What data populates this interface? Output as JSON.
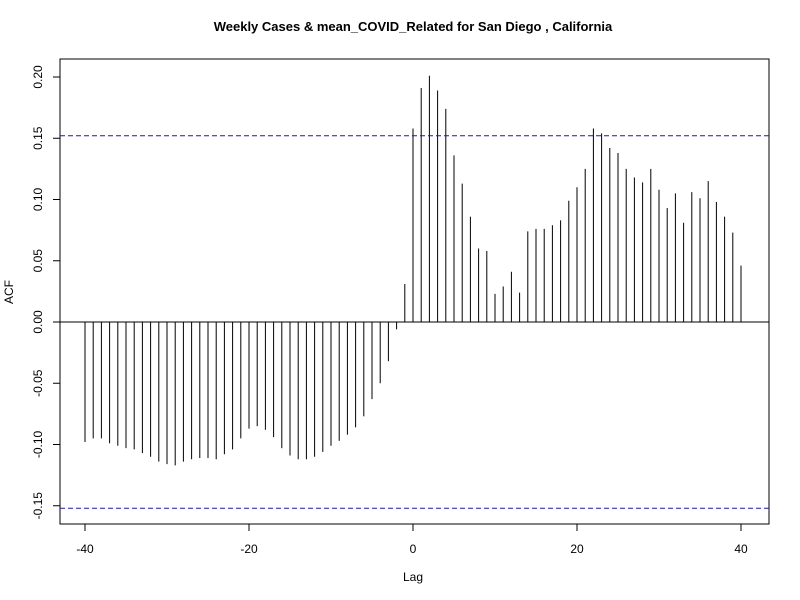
{
  "chart_data": {
    "type": "bar",
    "title": "Weekly Cases & mean_COVID_Related for San Diego , California",
    "xlabel": "Lag",
    "ylabel": "ACF",
    "xlim": [
      -40,
      40
    ],
    "ylim": [
      -0.15,
      0.2
    ],
    "x_ticks": [
      "-40",
      "-20",
      "0",
      "20",
      "40"
    ],
    "y_ticks": [
      "-0.15",
      "-0.10",
      "-0.05",
      "0.00",
      "0.05",
      "0.10",
      "0.15",
      "0.20"
    ],
    "confidence_bound": 0.152,
    "grid": false,
    "legend": "none",
    "x": [
      -40,
      -39,
      -38,
      -37,
      -36,
      -35,
      -34,
      -33,
      -32,
      -31,
      -30,
      -29,
      -28,
      -27,
      -26,
      -25,
      -24,
      -23,
      -22,
      -21,
      -20,
      -19,
      -18,
      -17,
      -16,
      -15,
      -14,
      -13,
      -12,
      -11,
      -10,
      -9,
      -8,
      -7,
      -6,
      -5,
      -4,
      -3,
      -2,
      -1,
      0,
      1,
      2,
      3,
      4,
      5,
      6,
      7,
      8,
      9,
      10,
      11,
      12,
      13,
      14,
      15,
      16,
      17,
      18,
      19,
      20,
      21,
      22,
      23,
      24,
      25,
      26,
      27,
      28,
      29,
      30,
      31,
      32,
      33,
      34,
      35,
      36,
      37,
      38,
      39,
      40
    ],
    "values": [
      -0.098,
      -0.095,
      -0.095,
      -0.099,
      -0.101,
      -0.103,
      -0.104,
      -0.107,
      -0.11,
      -0.114,
      -0.116,
      -0.117,
      -0.114,
      -0.112,
      -0.111,
      -0.111,
      -0.112,
      -0.108,
      -0.104,
      -0.095,
      -0.087,
      -0.085,
      -0.088,
      -0.094,
      -0.103,
      -0.109,
      -0.112,
      -0.112,
      -0.11,
      -0.106,
      -0.101,
      -0.097,
      -0.092,
      -0.086,
      -0.077,
      -0.063,
      -0.05,
      -0.032,
      -0.006,
      0.031,
      0.158,
      0.191,
      0.201,
      0.189,
      0.174,
      0.136,
      0.113,
      0.086,
      0.06,
      0.058,
      0.023,
      0.029,
      0.041,
      0.024,
      0.074,
      0.076,
      0.076,
      0.079,
      0.083,
      0.099,
      0.11,
      0.125,
      0.158,
      0.154,
      0.142,
      0.138,
      0.125,
      0.118,
      0.114,
      0.125,
      0.108,
      0.093,
      0.105,
      0.081,
      0.106,
      0.101,
      0.115,
      0.098,
      0.086,
      0.073,
      0.046
    ]
  }
}
